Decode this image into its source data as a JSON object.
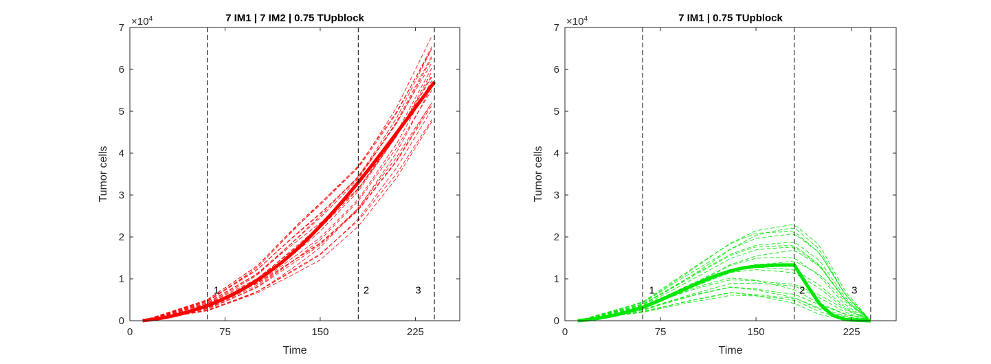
{
  "chart_data": [
    {
      "type": "line",
      "title": "7 IM1 | 7 IM2 | 0.75 TUpblock",
      "xlabel": "Time",
      "ylabel": "Tumor cells",
      "y_exponent_label": "×10",
      "y_exponent_power": "4",
      "xlim": [
        0,
        260
      ],
      "ylim": [
        0,
        70000
      ],
      "xticks": [
        "0",
        "75",
        "150",
        "225"
      ],
      "xtick_values": [
        0,
        75,
        150,
        225
      ],
      "yticks": [
        "0",
        "1",
        "2",
        "3",
        "4",
        "5",
        "6",
        "7"
      ],
      "ytick_values": [
        0,
        10000,
        20000,
        30000,
        40000,
        50000,
        60000,
        70000
      ],
      "color": "#ff0000",
      "grid": false,
      "vlines": [
        61,
        180,
        240
      ],
      "annotations": [
        {
          "text": "1",
          "x": 66,
          "y": 6500
        },
        {
          "text": "2",
          "x": 184,
          "y": 6500
        },
        {
          "text": "3",
          "x": 225,
          "y": 6500
        }
      ],
      "mean_series": {
        "x": [
          10,
          20,
          30,
          40,
          50,
          61,
          70,
          80,
          90,
          100,
          110,
          120,
          130,
          140,
          150,
          160,
          170,
          180,
          190,
          200,
          210,
          220,
          230,
          240
        ],
        "values": [
          0,
          400,
          900,
          1600,
          2500,
          3600,
          4700,
          6100,
          7700,
          9600,
          11700,
          14000,
          16600,
          19500,
          22600,
          25900,
          29400,
          33000,
          36800,
          40700,
          44700,
          48800,
          52900,
          57000
        ]
      },
      "replicate_spread": {
        "x": [
          10,
          61,
          100,
          150,
          180,
          210,
          240
        ],
        "low": [
          0,
          2300,
          6400,
          14500,
          22500,
          34000,
          48500
        ],
        "high": [
          0,
          5000,
          13000,
          28500,
          38000,
          52000,
          69500
        ]
      }
    },
    {
      "type": "line",
      "title": "7 IM1 | 0.75 TUpblock",
      "xlabel": "Time",
      "ylabel": "Tumor cells",
      "y_exponent_label": "×10",
      "y_exponent_power": "4",
      "xlim": [
        0,
        260
      ],
      "ylim": [
        0,
        70000
      ],
      "xticks": [
        "0",
        "75",
        "150",
        "225"
      ],
      "xtick_values": [
        0,
        75,
        150,
        225
      ],
      "yticks": [
        "0",
        "1",
        "2",
        "3",
        "4",
        "5",
        "6",
        "7"
      ],
      "ytick_values": [
        0,
        10000,
        20000,
        30000,
        40000,
        50000,
        60000,
        70000
      ],
      "color": "#00e600",
      "grid": false,
      "vlines": [
        61,
        180,
        240
      ],
      "annotations": [
        {
          "text": "1",
          "x": 66,
          "y": 6500
        },
        {
          "text": "2",
          "x": 184,
          "y": 6500
        },
        {
          "text": "3",
          "x": 225,
          "y": 6500
        }
      ],
      "mean_series": {
        "x": [
          10,
          20,
          30,
          40,
          50,
          61,
          70,
          80,
          90,
          100,
          110,
          120,
          130,
          140,
          150,
          160,
          170,
          180,
          190,
          200,
          210,
          220,
          230,
          240
        ],
        "values": [
          0,
          300,
          800,
          1400,
          2200,
          3200,
          4300,
          5600,
          7000,
          8400,
          9700,
          10900,
          11900,
          12600,
          13000,
          13200,
          13300,
          13300,
          8500,
          4000,
          1300,
          300,
          100,
          0
        ]
      },
      "replicate_spread": {
        "x": [
          10,
          61,
          100,
          130,
          150,
          180,
          200,
          220,
          240
        ],
        "low": [
          0,
          2000,
          4500,
          6000,
          5000,
          3000,
          500,
          0,
          0
        ],
        "high": [
          0,
          4500,
          12500,
          18500,
          21500,
          23000,
          18000,
          7000,
          0
        ]
      }
    }
  ]
}
